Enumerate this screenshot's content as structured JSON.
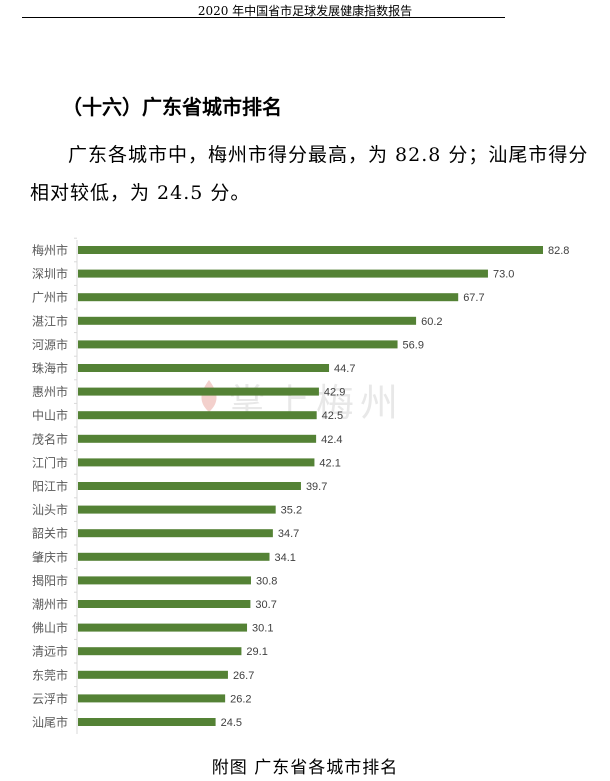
{
  "header": {
    "title": "2020 年中国省市足球发展健康指数报告"
  },
  "section": {
    "title": "（十六）广东省城市排名"
  },
  "paragraph": "广东各城市中，梅州市得分最高，为 82.8 分；汕尾市得分相对较低，为 24.5 分。",
  "watermark": "掌上梅州",
  "caption": "附图 广东省各城市排名",
  "chart_data": {
    "type": "bar",
    "orientation": "horizontal",
    "categories": [
      "梅州市",
      "深圳市",
      "广州市",
      "湛江市",
      "河源市",
      "珠海市",
      "惠州市",
      "中山市",
      "茂名市",
      "江门市",
      "阳江市",
      "汕头市",
      "韶关市",
      "肇庆市",
      "揭阳市",
      "潮州市",
      "佛山市",
      "清远市",
      "东莞市",
      "云浮市",
      "汕尾市"
    ],
    "values": [
      82.8,
      73.0,
      67.7,
      60.2,
      56.9,
      44.7,
      42.9,
      42.5,
      42.4,
      42.1,
      39.7,
      35.2,
      34.7,
      34.1,
      30.8,
      30.7,
      30.1,
      29.1,
      26.7,
      26.2,
      24.5
    ],
    "value_labels": [
      "82.8",
      "73.0",
      "67.7",
      "60.2",
      "56.9",
      "44.7",
      "42.9",
      "42.5",
      "42.4",
      "42.1",
      "39.7",
      "35.2",
      "34.7",
      "34.1",
      "30.8",
      "30.7",
      "30.1",
      "29.1",
      "26.7",
      "26.2",
      "24.5"
    ],
    "bar_color": "#548235",
    "grid": false,
    "xlim": [
      0,
      85
    ]
  }
}
